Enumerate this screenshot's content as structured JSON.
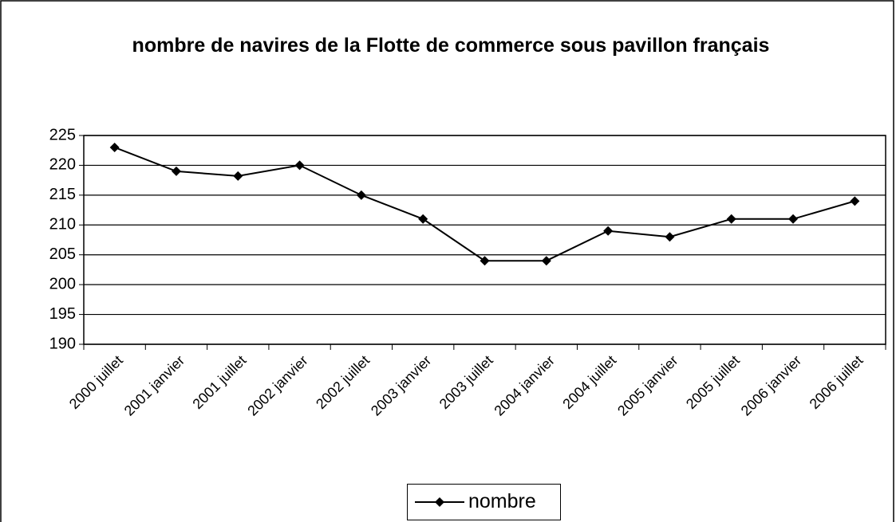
{
  "chart_data": {
    "type": "line",
    "title": "nombre de navires de la Flotte de commerce sous pavillon français",
    "categories": [
      "2000 juillet",
      "2001 janvier",
      "2001 juillet",
      "2002 janvier",
      "2002 juillet",
      "2003 janvier",
      "2003 juillet",
      "2004 janvier",
      "2004 juillet",
      "2005 janvier",
      "2005 juillet",
      "2006 janvier",
      "2006 juillet"
    ],
    "series": [
      {
        "name": "nombre",
        "color": "#000000",
        "values": [
          223,
          219,
          218.2,
          220,
          215,
          211,
          204,
          204,
          209,
          208,
          211,
          211,
          214
        ]
      }
    ],
    "ylim": [
      190,
      225
    ],
    "yticks": [
      190,
      195,
      200,
      205,
      210,
      215,
      220,
      225
    ],
    "grid": true,
    "legend": "bottom"
  }
}
